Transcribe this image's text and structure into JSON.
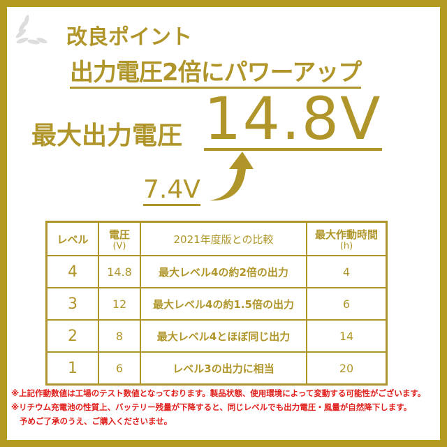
{
  "badge": "改良ポイント",
  "headline": "出力電圧2倍にパワーアップ",
  "max_voltage_label": "最大出力電圧",
  "new_voltage": "14.8V",
  "old_voltage": "7.4V",
  "colors": {
    "gold": "#b0962a",
    "frame": "#b39b22",
    "note_red": "#e0201c"
  },
  "table": {
    "headers": [
      {
        "main": "レベル",
        "sub": ""
      },
      {
        "main": "電圧",
        "sub": "(V)"
      },
      {
        "main": "2021年度版との比較",
        "sub": ""
      },
      {
        "main": "最大作動時間",
        "sub": "(h)"
      }
    ],
    "rows": [
      [
        "4",
        "14.8",
        "最大レベル4の約2倍の出力",
        "4"
      ],
      [
        "3",
        "12",
        "最大レベル4の約1.5倍の出力",
        "6"
      ],
      [
        "2",
        "8",
        "最大レベル4とほぼ同じ出力",
        "14"
      ],
      [
        "1",
        "6",
        "レベル3の出力に相当",
        "20"
      ]
    ]
  },
  "notes": [
    "※上記作動数値は工場のテスト数値となっております。製品状態、使用環境によって変動する可能性がございます。",
    "※リチウム充電池の性質上、バッテリー残量が下降すると、同じレベルでも出力電圧・風量が自然降下します。",
    "予めご了承のうえ、ご購入くださいませ。"
  ]
}
